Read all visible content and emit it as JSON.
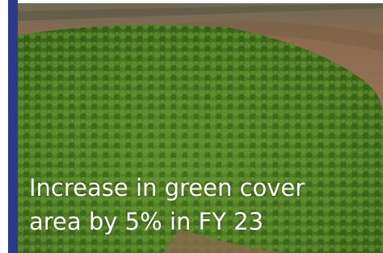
{
  "caption": {
    "lines": [
      "Increase in green cover",
      "area by 5% in FY 23"
    ]
  }
}
